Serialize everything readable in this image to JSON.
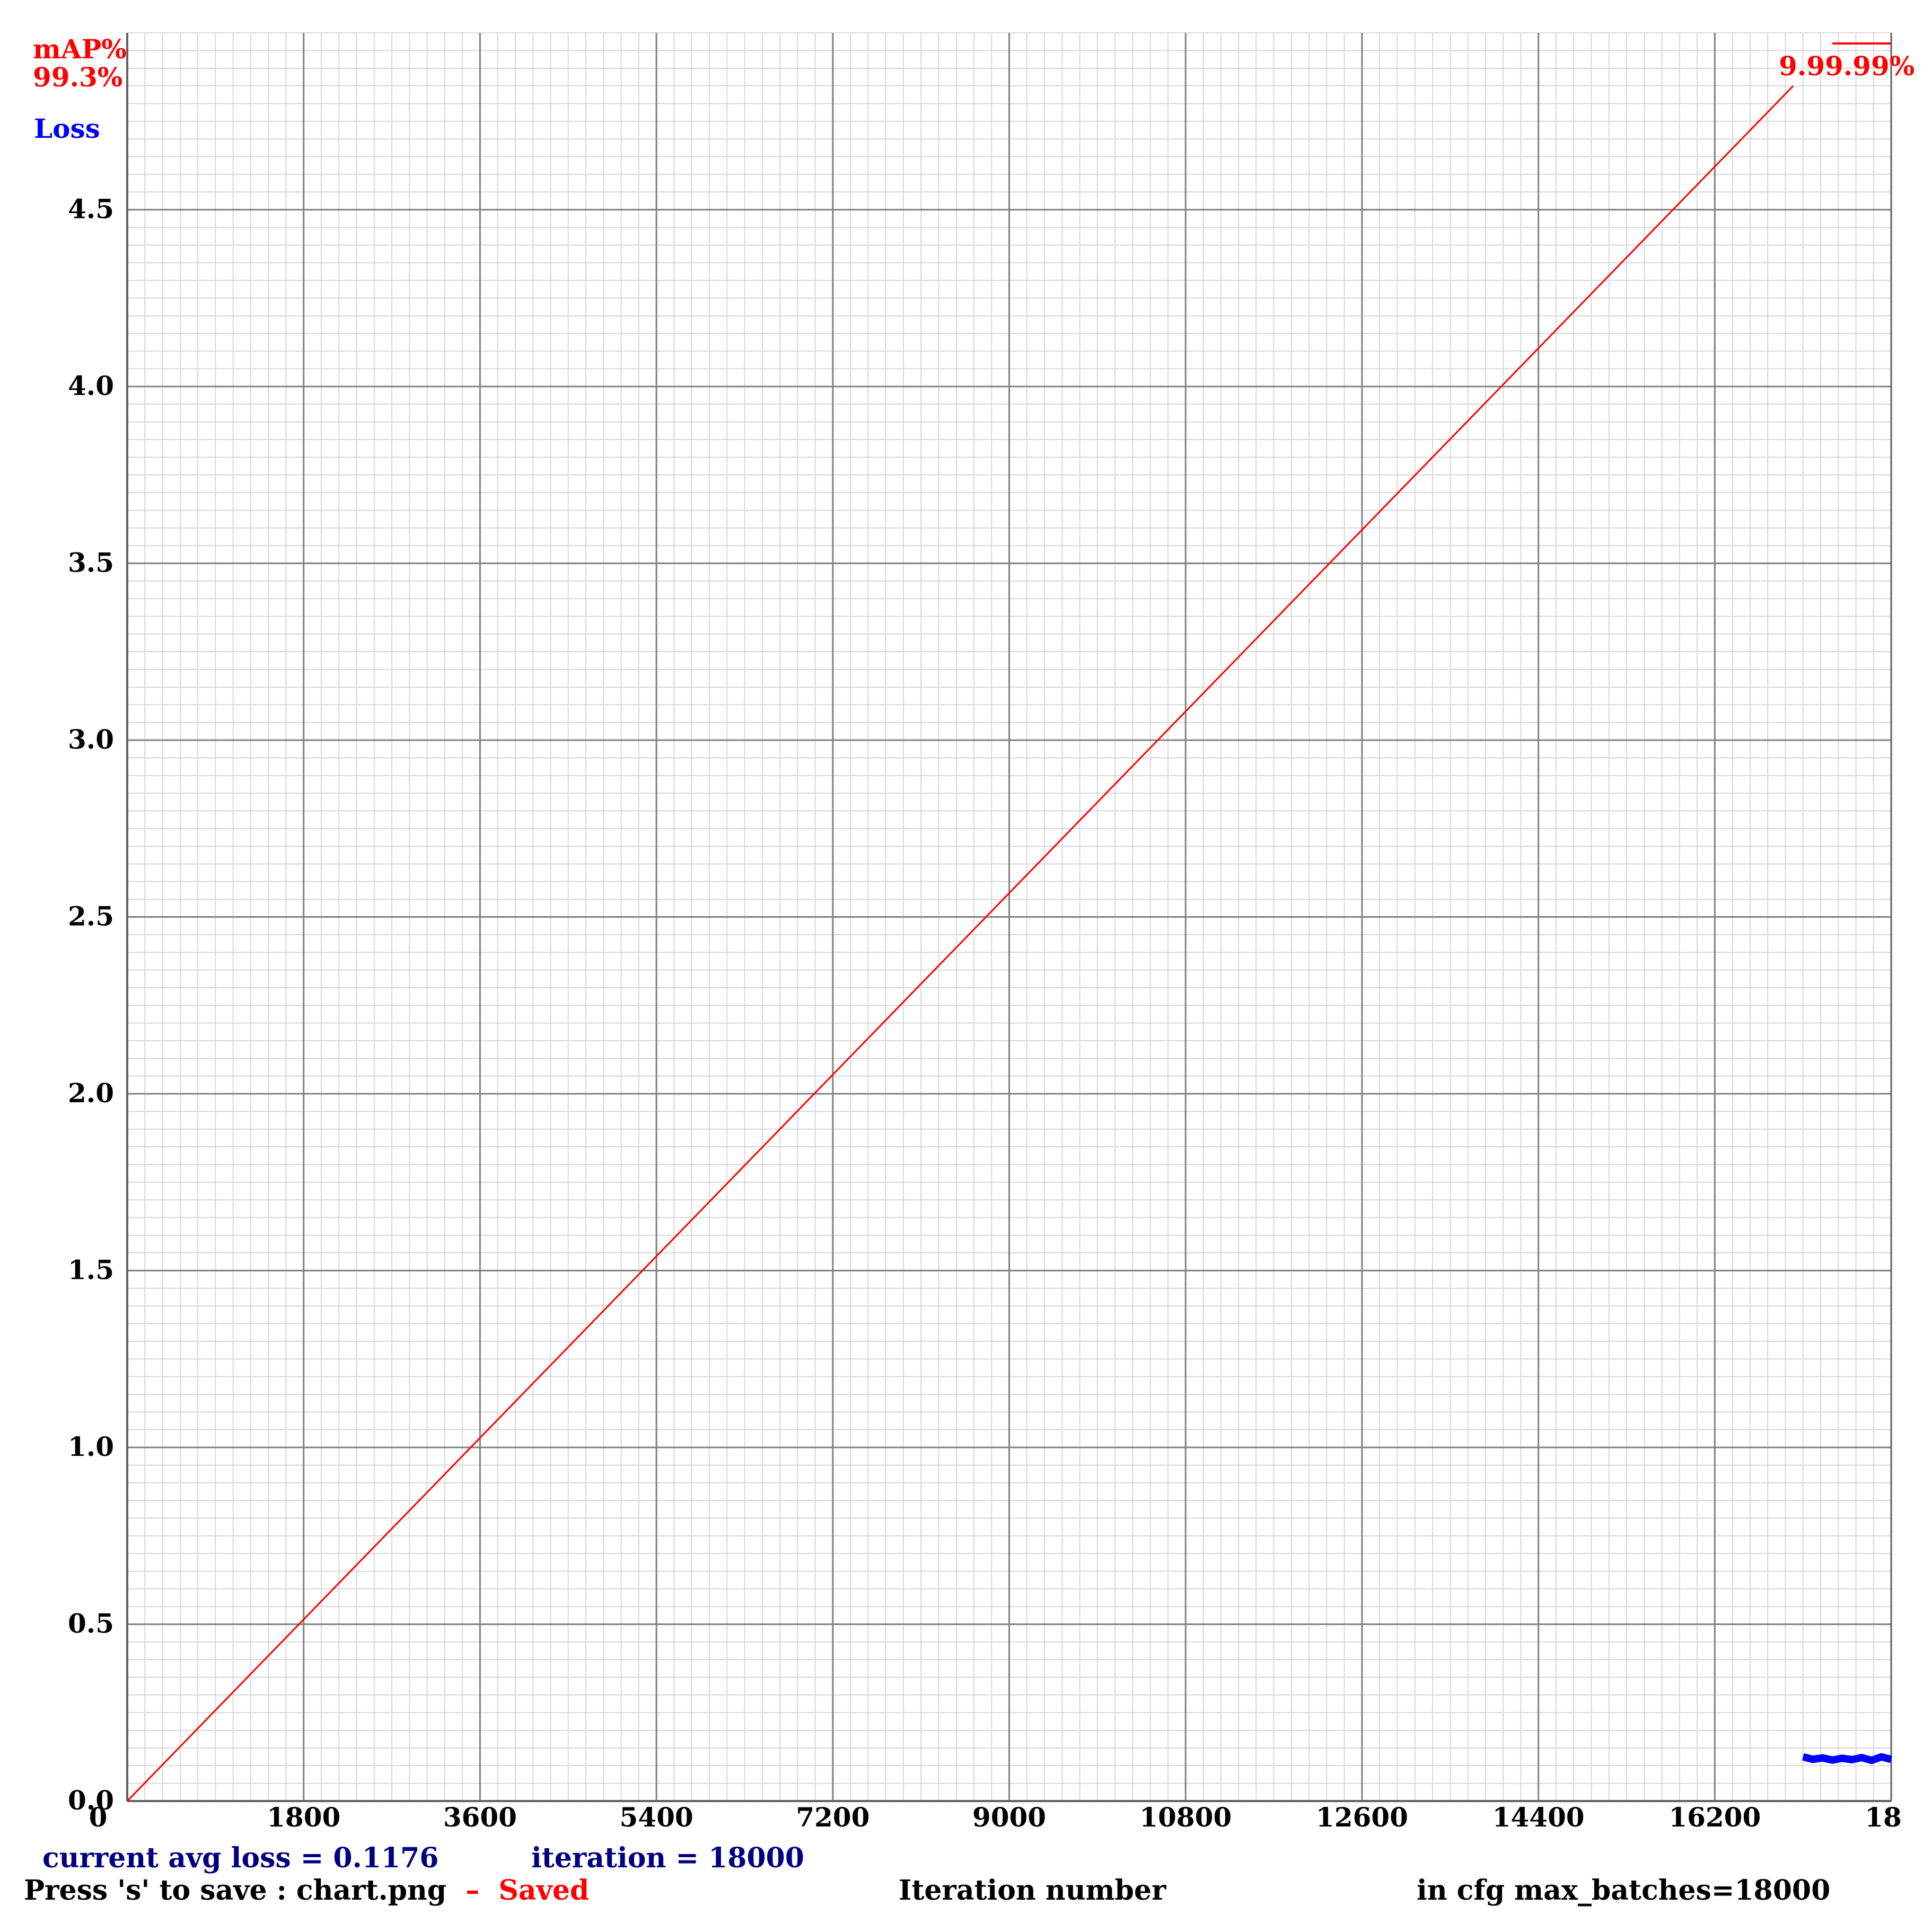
{
  "legend": {
    "map_label": "mAP%",
    "map_value": "99.3%",
    "loss_label": "Loss",
    "map_end_label": "9.99.99%"
  },
  "footer": {
    "avg_loss": "current avg loss = 0.1176",
    "iteration": "iteration = 18000",
    "press_save": "Press 's' to save : chart.png",
    "saved_dash": "–",
    "saved": "Saved",
    "xlabel": "Iteration number",
    "max_batches": "in cfg max_batches=18000"
  },
  "colors": {
    "map": "#ff0000",
    "loss": "#0000ff",
    "footer_info": "#000080",
    "text": "#000000",
    "major_grid": "#808080",
    "minor_grid": "#d8d8d8"
  },
  "chart_data": {
    "type": "line",
    "title": "",
    "xlabel": "Iteration number",
    "ylabel": "",
    "xlim": [
      0,
      18000
    ],
    "ylim": [
      0,
      5.0
    ],
    "grid": true,
    "legend_placement": "top-left",
    "x_ticks": [
      "0",
      "1800",
      "3600",
      "5400",
      "7200",
      "9000",
      "10800",
      "12600",
      "14400",
      "16200",
      "18"
    ],
    "y_ticks": [
      "0.0",
      "0.5",
      "1.0",
      "1.5",
      "2.0",
      "2.5",
      "3.0",
      "3.5",
      "4.0",
      "4.5"
    ],
    "series": [
      {
        "name": "mAP%",
        "color": "#ff0000",
        "x": [
          0,
          17000
        ],
        "y": [
          0,
          4.85
        ]
      },
      {
        "name": "Loss",
        "color": "#0000ff",
        "x": [
          17100,
          17200,
          17300,
          17400,
          17500,
          17600,
          17700,
          17800,
          17900,
          18000
        ],
        "y": [
          0.125,
          0.118,
          0.122,
          0.116,
          0.121,
          0.117,
          0.123,
          0.115,
          0.125,
          0.1176
        ]
      }
    ]
  }
}
